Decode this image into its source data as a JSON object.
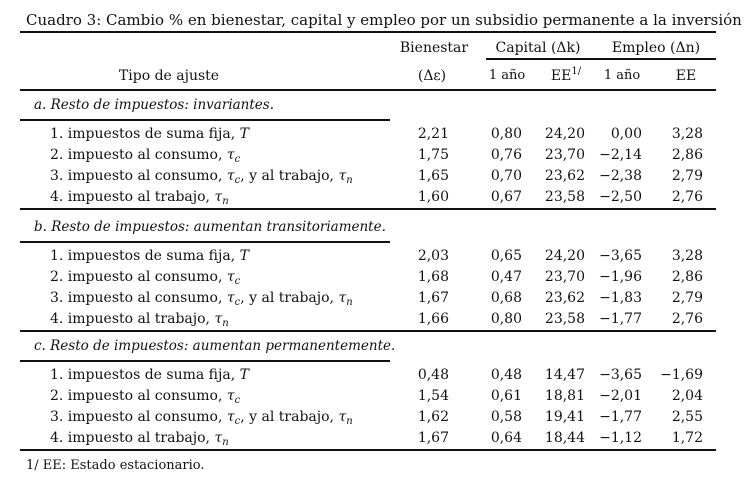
{
  "title": "Cuadro 3: Cambio % en bienestar, capital y empleo por un subsidio permanente a la inversión",
  "header": {
    "tipo": "Tipo de ajuste",
    "bienestar": "Bienestar",
    "bienestar_sym": "(Δε)",
    "capital": "Capital (Δk)",
    "empleo": "Empleo (Δn)",
    "sub_cols": [
      "1 año",
      "EE",
      "1 año",
      "EE"
    ],
    "ee_note_mark": "1/"
  },
  "sections": [
    {
      "label": "a. Resto de impuestos: invariantes.",
      "rows": [
        {
          "label": [
            {
              "t": "1. impuestos de suma fija, "
            },
            {
              "m": "T"
            }
          ],
          "values": [
            "2,21",
            "0,80",
            "24,20",
            "0,00",
            "3,28"
          ]
        },
        {
          "label": [
            {
              "t": "2. impuesto al consumo, "
            },
            {
              "m": "τ",
              "sub": "c"
            }
          ],
          "values": [
            "1,75",
            "0,76",
            "23,70",
            "−2,14",
            "2,86"
          ]
        },
        {
          "label": [
            {
              "t": "3. impuesto al consumo, "
            },
            {
              "m": "τ",
              "sub": "c"
            },
            {
              "t": ", y al trabajo, "
            },
            {
              "m": "τ",
              "sub": "n"
            }
          ],
          "values": [
            "1,65",
            "0,70",
            "23,62",
            "−2,38",
            "2,79"
          ]
        },
        {
          "label": [
            {
              "t": "4. impuesto al trabajo, "
            },
            {
              "m": "τ",
              "sub": "n"
            }
          ],
          "values": [
            "1,60",
            "0,67",
            "23,58",
            "−2,50",
            "2,76"
          ]
        }
      ]
    },
    {
      "label": "b. Resto de impuestos: aumentan transitoriamente.",
      "rows": [
        {
          "label": [
            {
              "t": "1. impuestos de suma fija, "
            },
            {
              "m": "T"
            }
          ],
          "values": [
            "2,03",
            "0,65",
            "24,20",
            "−3,65",
            "3,28"
          ]
        },
        {
          "label": [
            {
              "t": "2. impuesto al consumo, "
            },
            {
              "m": "τ",
              "sub": "c"
            }
          ],
          "values": [
            "1,68",
            "0,47",
            "23,70",
            "−1,96",
            "2,86"
          ]
        },
        {
          "label": [
            {
              "t": "3. impuesto al consumo, "
            },
            {
              "m": "τ",
              "sub": "c"
            },
            {
              "t": ", y al trabajo, "
            },
            {
              "m": "τ",
              "sub": "n"
            }
          ],
          "values": [
            "1,67",
            "0,68",
            "23,62",
            "−1,83",
            "2,79"
          ]
        },
        {
          "label": [
            {
              "t": "4. impuesto al trabajo, "
            },
            {
              "m": "τ",
              "sub": "n"
            }
          ],
          "values": [
            "1,66",
            "0,80",
            "23,58",
            "−1,77",
            "2,76"
          ]
        }
      ]
    },
    {
      "label": "c. Resto de impuestos: aumentan permanentemente.",
      "rows": [
        {
          "label": [
            {
              "t": "1. impuestos de suma fija, "
            },
            {
              "m": "T"
            }
          ],
          "values": [
            "0,48",
            "0,48",
            "14,47",
            "−3,65",
            "−1,69"
          ]
        },
        {
          "label": [
            {
              "t": "2. impuesto al consumo, "
            },
            {
              "m": "τ",
              "sub": "c"
            }
          ],
          "values": [
            "1,54",
            "0,61",
            "18,81",
            "−2,01",
            "2,04"
          ]
        },
        {
          "label": [
            {
              "t": "3. impuesto al consumo, "
            },
            {
              "m": "τ",
              "sub": "c"
            },
            {
              "t": ", y al trabajo, "
            },
            {
              "m": "τ",
              "sub": "n"
            }
          ],
          "values": [
            "1,62",
            "0,58",
            "19,41",
            "−1,77",
            "2,55"
          ]
        },
        {
          "label": [
            {
              "t": "4. impuesto al trabajo, "
            },
            {
              "m": "τ",
              "sub": "n"
            }
          ],
          "values": [
            "1,67",
            "0,64",
            "18,44",
            "−1,12",
            "1,72"
          ]
        }
      ]
    }
  ],
  "footnote": "1/ EE: Estado estacionario."
}
